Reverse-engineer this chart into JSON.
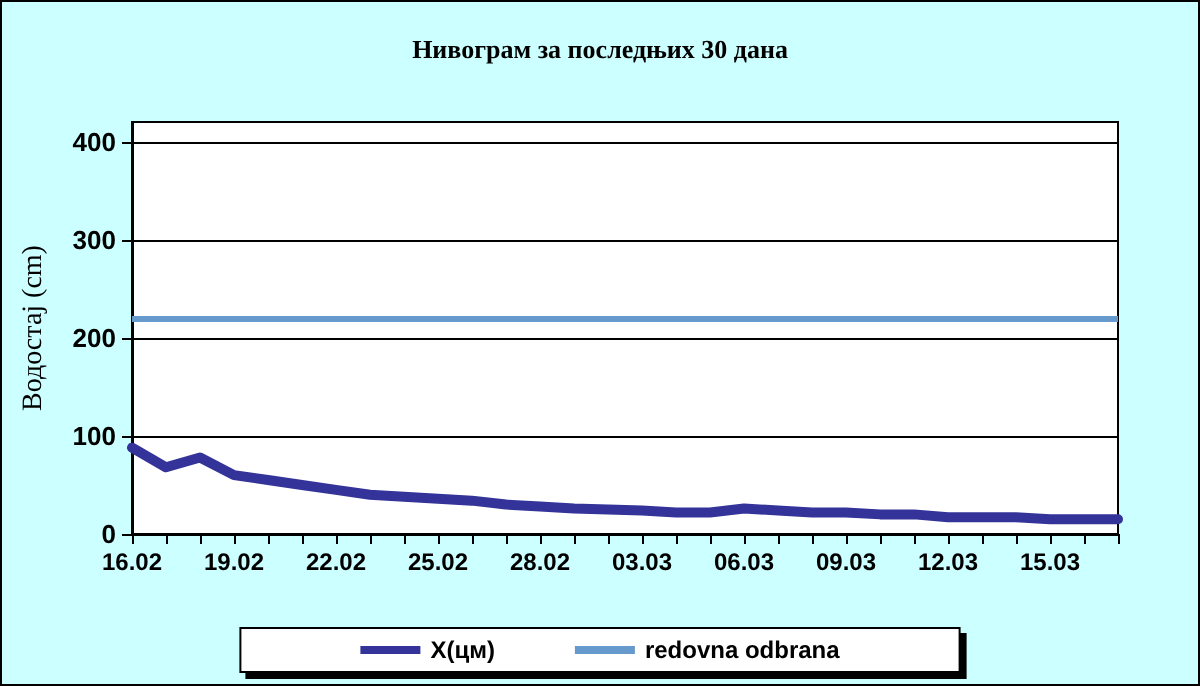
{
  "chart_data": {
    "type": "line",
    "title": "Нивограм за последњих 30 дана",
    "ylabel": "Водостај (cm)",
    "categories": [
      "16.02",
      null,
      null,
      "19.02",
      null,
      null,
      "22.02",
      null,
      null,
      "25.02",
      null,
      null,
      "28.02",
      null,
      null,
      "03.03",
      null,
      null,
      "06.03",
      null,
      null,
      "09.03",
      null,
      null,
      "12.03",
      null,
      null,
      "15.03",
      null,
      null
    ],
    "series": [
      {
        "name": "X(цм)",
        "color": "#333399",
        "values": [
          88,
          68,
          78,
          60,
          55,
          50,
          45,
          40,
          38,
          36,
          34,
          30,
          28,
          26,
          25,
          24,
          22,
          22,
          26,
          24,
          22,
          22,
          20,
          20,
          17,
          17,
          17,
          15,
          15,
          15
        ]
      }
    ],
    "ref_lines": [
      {
        "axis": "y",
        "value": 220,
        "label": "redovna odbrana",
        "color": "#6699cc"
      }
    ],
    "ylim": [
      0,
      420
    ],
    "yticks": [
      0,
      100,
      200,
      300,
      400
    ],
    "grid": "y",
    "legend": "bottom",
    "marker": "none",
    "line_style": "solid"
  }
}
